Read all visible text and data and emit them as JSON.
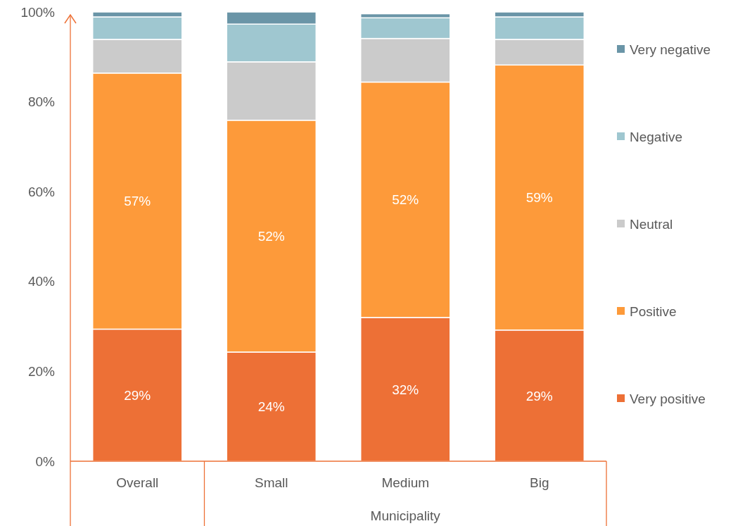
{
  "chart_data": {
    "type": "bar",
    "stacked": true,
    "categories": [
      "Overall",
      "Small",
      "Medium",
      "Big"
    ],
    "xlabel": "Municipality",
    "ylim": [
      0,
      100
    ],
    "yticks": [
      {
        "value": 0,
        "label": "0%"
      },
      {
        "value": 20,
        "label": "20%"
      },
      {
        "value": 40,
        "label": "40%"
      },
      {
        "value": 60,
        "label": "60%"
      },
      {
        "value": 80,
        "label": "80%"
      },
      {
        "value": 100,
        "label": "100%"
      }
    ],
    "legend": "right",
    "grid": false,
    "series": [
      {
        "name": "Very positive",
        "color": "#ed7036",
        "values": [
          29.4,
          24.3,
          32.0,
          29.2
        ],
        "value_labels": [
          "29%",
          "24%",
          "32%",
          "29%"
        ]
      },
      {
        "name": "Positive",
        "color": "#fd9a3a",
        "values": [
          57.0,
          51.6,
          52.4,
          59.0
        ],
        "value_labels": [
          "57%",
          "52%",
          "52%",
          "59%"
        ]
      },
      {
        "name": "Neutral",
        "color": "#cbcbcb",
        "values": [
          7.5,
          13.0,
          9.7,
          5.7
        ]
      },
      {
        "name": "Negative",
        "color": "#9fc7d0",
        "values": [
          5.0,
          8.4,
          4.6,
          5.0
        ]
      },
      {
        "name": "Very negative",
        "color": "#6a95a7",
        "values": [
          1.1,
          2.7,
          0.9,
          1.1
        ]
      }
    ]
  }
}
